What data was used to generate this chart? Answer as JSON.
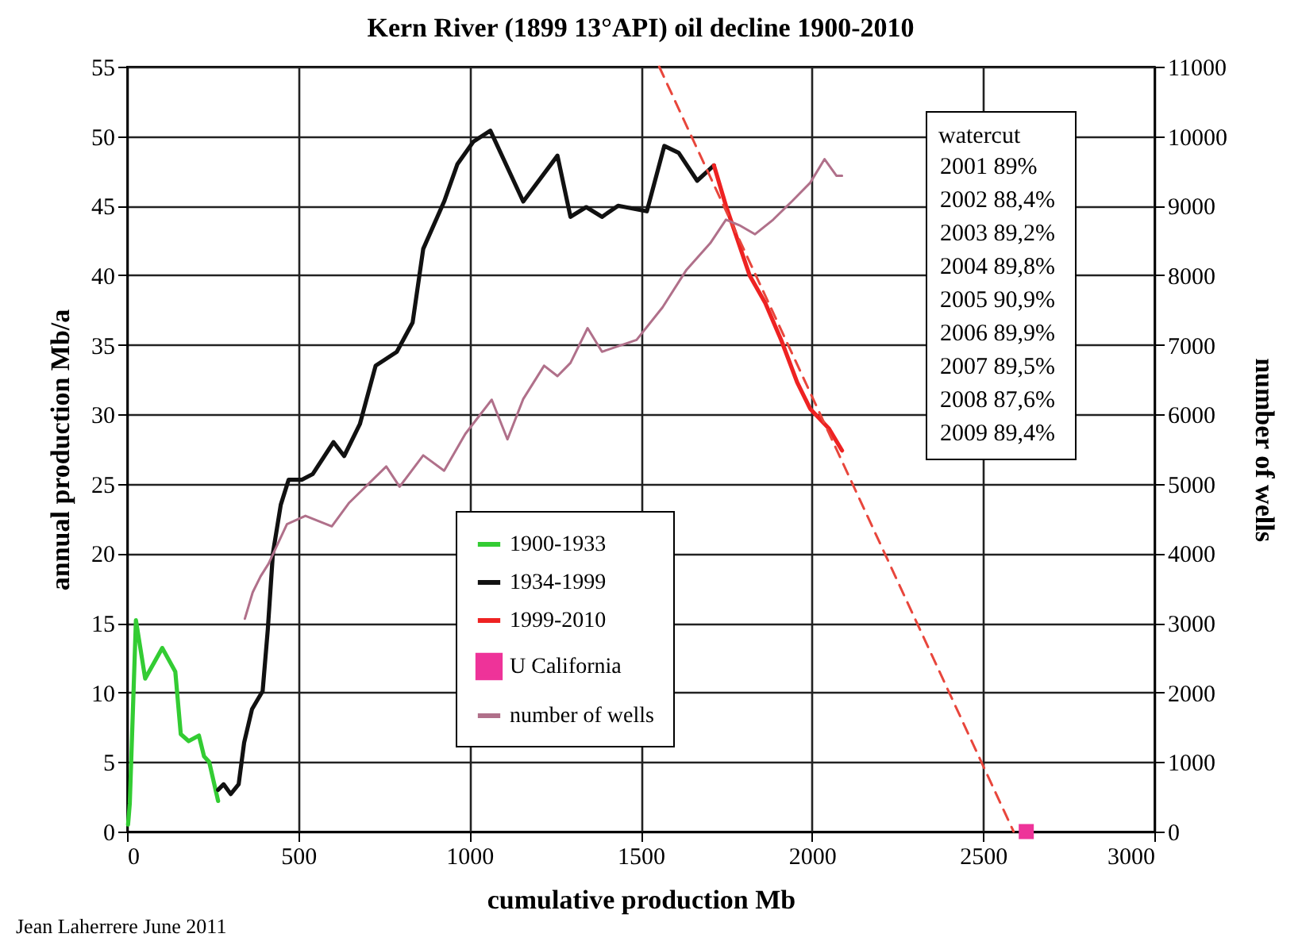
{
  "chart_data": {
    "type": "line",
    "title": "Kern River (1899 13°API) oil decline 1900-2010",
    "xlabel": "cumulative production Mb",
    "ylabel": "annual production Mb/a",
    "y2label": "number of wells",
    "xlim": [
      0,
      3000
    ],
    "xticks": [
      0,
      500,
      1000,
      1500,
      2000,
      2500,
      3000
    ],
    "ylim": [
      0,
      55
    ],
    "yticks": [
      0,
      5,
      10,
      15,
      20,
      25,
      30,
      35,
      40,
      45,
      50,
      55
    ],
    "y2lim": [
      0,
      11000
    ],
    "y2ticks": [
      0,
      1000,
      2000,
      3000,
      4000,
      5000,
      6000,
      7000,
      8000,
      9000,
      10000,
      11000
    ],
    "grid": true,
    "legend": "bottom",
    "line_style": "solid",
    "series": [
      {
        "name": "1900-1933",
        "color": "#33cc33",
        "x": [
          3,
          8,
          26,
          53,
          103,
          141,
          157,
          180,
          210,
          225,
          240,
          266
        ],
        "values": [
          0.5,
          2,
          15.2,
          11,
          13.2,
          11.5,
          7,
          6.5,
          6.9,
          5.4,
          5,
          2.2
        ]
      },
      {
        "name": "1934-1999",
        "color": "#111111",
        "x": [
          266,
          282,
          303,
          326,
          342,
          365,
          396,
          411,
          426,
          449,
          472,
          511,
          542,
          603,
          634,
          680,
          726,
          788,
          834,
          865,
          926,
          965,
          1011,
          1061,
          1157,
          1257,
          1295,
          1341,
          1387,
          1434,
          1518,
          1569,
          1611,
          1665,
          1714
        ],
        "values": [
          3,
          3.4,
          2.7,
          3.4,
          6.4,
          8.8,
          10.1,
          14.5,
          20,
          23.5,
          25.3,
          25.3,
          25.7,
          28,
          27,
          29.3,
          33.5,
          34.5,
          36.6,
          41.9,
          45.3,
          48,
          49.6,
          50.4,
          45.3,
          48.6,
          44.2,
          44.9,
          44.2,
          45,
          44.6,
          49.3,
          48.8,
          46.8,
          47.9
        ]
      },
      {
        "name": "1999-2010",
        "color": "#ee2222",
        "x": [
          1714,
          1749,
          1818,
          1864,
          1911,
          1957,
          1995,
          2049,
          2088
        ],
        "values": [
          47.9,
          45,
          40,
          38,
          35.3,
          32.3,
          30.4,
          29,
          27.4
        ]
      },
      {
        "name": "U California",
        "type": "scatter",
        "marker": "square",
        "color": "#ee3399",
        "x": [
          2626
        ],
        "values": [
          0
        ]
      },
      {
        "name": "number of wells",
        "axis": "y2",
        "color": "#b0708a",
        "x": [
          344,
          367,
          390,
          413,
          467,
          521,
          598,
          649,
          757,
          796,
          865,
          926,
          988,
          1065,
          1111,
          1157,
          1218,
          1257,
          1295,
          1345,
          1387,
          1488,
          1564,
          1634,
          1703,
          1749,
          1788,
          1834,
          1887,
          1941,
          1995,
          2037,
          2072,
          2088
        ],
        "values": [
          3060,
          3440,
          3670,
          3850,
          4420,
          4540,
          4390,
          4730,
          5250,
          4960,
          5410,
          5190,
          5720,
          6210,
          5640,
          6220,
          6700,
          6550,
          6740,
          7240,
          6900,
          7070,
          7540,
          8080,
          8460,
          8800,
          8720,
          8590,
          8800,
          9060,
          9330,
          9670,
          9430,
          9430
        ]
      },
      {
        "color": "#e8463c",
        "line_style": "dashed",
        "x": [
          1554,
          2589
        ],
        "values": [
          55,
          0
        ]
      }
    ],
    "annotations": [
      "watercut",
      "2001  89%",
      "2002  88,4%",
      "2003  89,2%",
      "2004  89,8%",
      "2005  90,9%",
      "2006  89,9%",
      "2007  89,5%",
      "2008  87,6%",
      "2009  89,4%",
      "Jean Laherrere June 2011"
    ]
  }
}
